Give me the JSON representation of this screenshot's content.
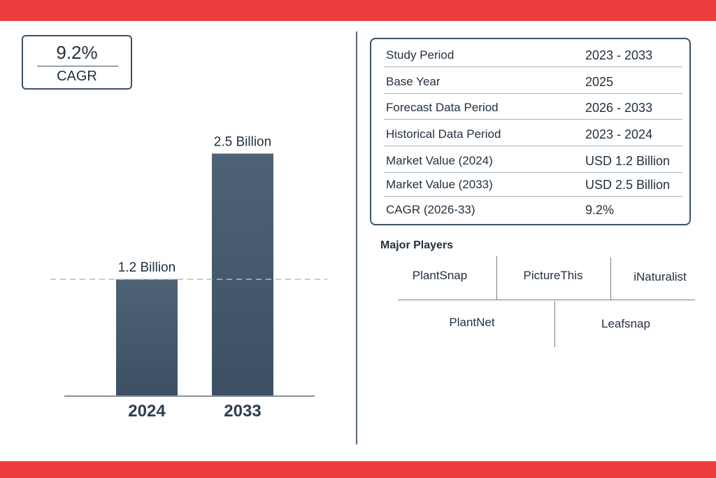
{
  "cagr_box": {
    "value": "9.2%",
    "label": "CAGR"
  },
  "chart_data": {
    "type": "bar",
    "categories": [
      "2024",
      "2033"
    ],
    "values": [
      1.2,
      2.5
    ],
    "data_labels": [
      "1.2 Billion",
      "2.5 Billion"
    ],
    "unit": "Billion",
    "ylim": [
      0,
      2.8
    ],
    "reference_line": {
      "value": 1.2,
      "style": "dashed"
    },
    "title": "",
    "xlabel": "",
    "ylabel": "",
    "grid": false,
    "colors": {
      "bar": "#45596c",
      "axis": "#5d6d7d",
      "reference": "#b4bcc4"
    }
  },
  "table": {
    "rows": [
      {
        "key": "Study Period",
        "value": "2023 - 2033"
      },
      {
        "key": "Base Year",
        "value": "2025"
      },
      {
        "key": "Forecast Data Period",
        "value": "2026 - 2033"
      },
      {
        "key": "Historical Data Period",
        "value": "2023 - 2024"
      },
      {
        "key": "Market Value (2024)",
        "value": "USD 1.2 Billion"
      },
      {
        "key": "Market Value (2033)",
        "value": "USD 2.5 Billion"
      },
      {
        "key": "CAGR (2026-33)",
        "value": "9.2%"
      }
    ]
  },
  "players": {
    "title": "Major Players",
    "names": [
      "PlantSnap",
      "PictureThis",
      "iNaturalist",
      "PlantNet",
      "Leafsnap"
    ]
  },
  "colors": {
    "accent_band": "#ee3d3d",
    "border": "#3e5064",
    "text": "#22313f"
  }
}
